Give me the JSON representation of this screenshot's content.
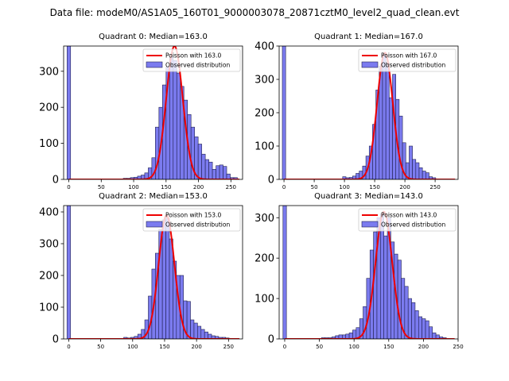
{
  "title": "Data file: modeM0/AS1A05_160T01_9000003078_20871cztM0_level2_quad_clean.evt",
  "colors": {
    "hist_fill": "#7b7bef",
    "hist_edge": "#202050",
    "poisson": "#ee0000"
  },
  "chart_data": [
    {
      "type": "bar",
      "title": "Quadrant 0: Median=163.0",
      "legend": {
        "line": "Poisson with 163.0",
        "bar": "Observed distribution",
        "placement": "top-right"
      },
      "xlim": [
        -8,
        268
      ],
      "ylim": [
        0,
        370
      ],
      "xticks": [
        0,
        50,
        100,
        150,
        200,
        250
      ],
      "yticks": [
        0,
        100,
        200,
        300
      ],
      "bin_width": 5.5,
      "median": 163,
      "poisson_peak": 370,
      "zero_bin": {
        "x": 0,
        "value": 370
      },
      "bins": [
        {
          "x": 84,
          "v": 3
        },
        {
          "x": 89.5,
          "v": 3
        },
        {
          "x": 95,
          "v": 5
        },
        {
          "x": 100.5,
          "v": 6
        },
        {
          "x": 106,
          "v": 9
        },
        {
          "x": 111.5,
          "v": 12
        },
        {
          "x": 117,
          "v": 18
        },
        {
          "x": 122.5,
          "v": 32
        },
        {
          "x": 128,
          "v": 60
        },
        {
          "x": 133.5,
          "v": 145
        },
        {
          "x": 139,
          "v": 200
        },
        {
          "x": 144.5,
          "v": 262
        },
        {
          "x": 150,
          "v": 312
        },
        {
          "x": 155.5,
          "v": 340
        },
        {
          "x": 161,
          "v": 330
        },
        {
          "x": 166.5,
          "v": 295
        },
        {
          "x": 172,
          "v": 258
        },
        {
          "x": 177.5,
          "v": 220
        },
        {
          "x": 183,
          "v": 180
        },
        {
          "x": 188.5,
          "v": 145
        },
        {
          "x": 194,
          "v": 118
        },
        {
          "x": 199.5,
          "v": 98
        },
        {
          "x": 205,
          "v": 70
        },
        {
          "x": 210.5,
          "v": 55
        },
        {
          "x": 216,
          "v": 48
        },
        {
          "x": 221.5,
          "v": 28
        },
        {
          "x": 227,
          "v": 38
        },
        {
          "x": 232.5,
          "v": 40
        },
        {
          "x": 238,
          "v": 36
        },
        {
          "x": 243.5,
          "v": 15
        },
        {
          "x": 249,
          "v": 5
        },
        {
          "x": 254.5,
          "v": 5
        }
      ]
    },
    {
      "type": "bar",
      "title": "Quadrant 1: Median=167.0",
      "legend": {
        "line": "Poisson with 167.0",
        "bar": "Observed distribution",
        "placement": "top-right"
      },
      "xlim": [
        -8,
        288
      ],
      "ylim": [
        0,
        400
      ],
      "xticks": [
        0,
        50,
        100,
        150,
        200,
        250
      ],
      "yticks": [
        0,
        100,
        200,
        300,
        400
      ],
      "bin_width": 5.5,
      "median": 167,
      "poisson_peak": 380,
      "zero_bin": {
        "x": 0,
        "value": 400
      },
      "bins": [
        {
          "x": 97,
          "v": 8
        },
        {
          "x": 102.5,
          "v": 5
        },
        {
          "x": 108,
          "v": 6
        },
        {
          "x": 113.5,
          "v": 10
        },
        {
          "x": 119,
          "v": 18
        },
        {
          "x": 124.5,
          "v": 25
        },
        {
          "x": 130,
          "v": 40
        },
        {
          "x": 135.5,
          "v": 70
        },
        {
          "x": 141,
          "v": 100
        },
        {
          "x": 146.5,
          "v": 165
        },
        {
          "x": 152,
          "v": 268
        },
        {
          "x": 157.5,
          "v": 340
        },
        {
          "x": 163,
          "v": 375
        },
        {
          "x": 168.5,
          "v": 350
        },
        {
          "x": 174,
          "v": 245
        },
        {
          "x": 179.5,
          "v": 315
        },
        {
          "x": 185,
          "v": 240
        },
        {
          "x": 190.5,
          "v": 190
        },
        {
          "x": 196,
          "v": 110
        },
        {
          "x": 201.5,
          "v": 50
        },
        {
          "x": 207,
          "v": 100
        },
        {
          "x": 212.5,
          "v": 60
        },
        {
          "x": 218,
          "v": 50
        },
        {
          "x": 223.5,
          "v": 35
        },
        {
          "x": 229,
          "v": 25
        },
        {
          "x": 234.5,
          "v": 20
        },
        {
          "x": 240,
          "v": 8
        },
        {
          "x": 245.5,
          "v": 5
        }
      ]
    },
    {
      "type": "bar",
      "title": "Quadrant 2: Median=153.0",
      "legend": {
        "line": "Poisson with 153.0",
        "bar": "Observed distribution",
        "placement": "top-right"
      },
      "xlim": [
        -8,
        272
      ],
      "ylim": [
        0,
        420
      ],
      "xticks": [
        0,
        50,
        100,
        150,
        200,
        250
      ],
      "yticks": [
        0,
        100,
        200,
        300,
        400
      ],
      "bin_width": 5.5,
      "median": 153,
      "poisson_peak": 390,
      "zero_bin": {
        "x": 0,
        "value": 420
      },
      "bins": [
        {
          "x": 86,
          "v": 5
        },
        {
          "x": 91.5,
          "v": 3
        },
        {
          "x": 97,
          "v": 5
        },
        {
          "x": 102.5,
          "v": 8
        },
        {
          "x": 108,
          "v": 15
        },
        {
          "x": 113.5,
          "v": 30
        },
        {
          "x": 119,
          "v": 60
        },
        {
          "x": 124.5,
          "v": 135
        },
        {
          "x": 130,
          "v": 220
        },
        {
          "x": 135.5,
          "v": 270
        },
        {
          "x": 141,
          "v": 345
        },
        {
          "x": 146.5,
          "v": 375
        },
        {
          "x": 152,
          "v": 380
        },
        {
          "x": 157.5,
          "v": 315
        },
        {
          "x": 163,
          "v": 245
        },
        {
          "x": 168.5,
          "v": 200
        },
        {
          "x": 174,
          "v": 200
        },
        {
          "x": 179.5,
          "v": 120
        },
        {
          "x": 185,
          "v": 118
        },
        {
          "x": 190.5,
          "v": 60
        },
        {
          "x": 196,
          "v": 50
        },
        {
          "x": 201.5,
          "v": 40
        },
        {
          "x": 207,
          "v": 30
        },
        {
          "x": 212.5,
          "v": 22
        },
        {
          "x": 218,
          "v": 15
        },
        {
          "x": 223.5,
          "v": 10
        },
        {
          "x": 229,
          "v": 8
        },
        {
          "x": 234.5,
          "v": 5
        },
        {
          "x": 240,
          "v": 5
        },
        {
          "x": 245.5,
          "v": 3
        }
      ]
    },
    {
      "type": "bar",
      "title": "Quadrant 3: Median=143.0",
      "legend": {
        "line": "Poisson with 143.0",
        "bar": "Observed distribution",
        "placement": "top-right"
      },
      "xlim": [
        -8,
        250
      ],
      "ylim": [
        0,
        330
      ],
      "xticks": [
        0,
        50,
        100,
        150,
        200,
        250
      ],
      "yticks": [
        0,
        100,
        200,
        300
      ],
      "bin_width": 5.0,
      "median": 143,
      "poisson_peak": 315,
      "zero_bin": {
        "x": 0,
        "value": 330
      },
      "bins": [
        {
          "x": 53,
          "v": 3
        },
        {
          "x": 58,
          "v": 3
        },
        {
          "x": 63,
          "v": 3
        },
        {
          "x": 68,
          "v": 5
        },
        {
          "x": 73,
          "v": 8
        },
        {
          "x": 78,
          "v": 10
        },
        {
          "x": 83,
          "v": 10
        },
        {
          "x": 88,
          "v": 12
        },
        {
          "x": 93,
          "v": 15
        },
        {
          "x": 98,
          "v": 22
        },
        {
          "x": 103,
          "v": 28
        },
        {
          "x": 108,
          "v": 50
        },
        {
          "x": 113,
          "v": 80
        },
        {
          "x": 118,
          "v": 150
        },
        {
          "x": 123,
          "v": 220
        },
        {
          "x": 128,
          "v": 265
        },
        {
          "x": 133,
          "v": 300
        },
        {
          "x": 138,
          "v": 310
        },
        {
          "x": 143,
          "v": 255
        },
        {
          "x": 148,
          "v": 300
        },
        {
          "x": 153,
          "v": 240
        },
        {
          "x": 158,
          "v": 210
        },
        {
          "x": 163,
          "v": 195
        },
        {
          "x": 168,
          "v": 150
        },
        {
          "x": 173,
          "v": 130
        },
        {
          "x": 178,
          "v": 100
        },
        {
          "x": 183,
          "v": 90
        },
        {
          "x": 188,
          "v": 70
        },
        {
          "x": 193,
          "v": 55
        },
        {
          "x": 198,
          "v": 50
        },
        {
          "x": 203,
          "v": 45
        },
        {
          "x": 208,
          "v": 30
        },
        {
          "x": 213,
          "v": 15
        },
        {
          "x": 218,
          "v": 10
        },
        {
          "x": 223,
          "v": 5
        },
        {
          "x": 228,
          "v": 3
        }
      ]
    }
  ]
}
